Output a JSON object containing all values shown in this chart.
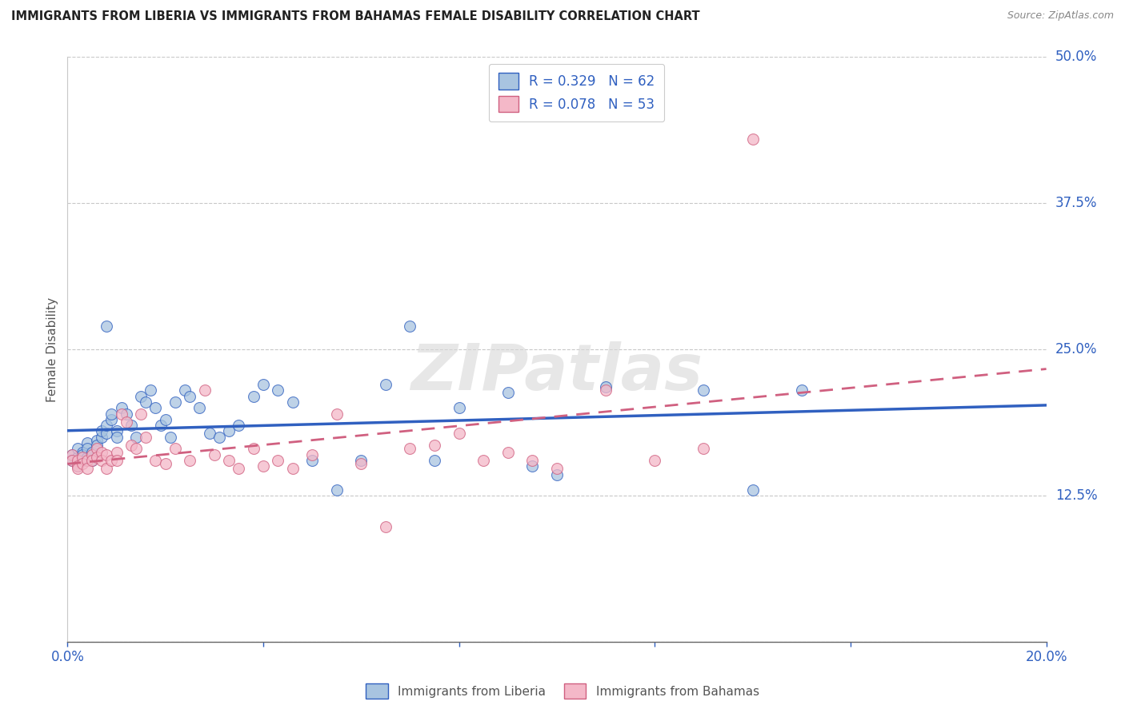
{
  "title": "IMMIGRANTS FROM LIBERIA VS IMMIGRANTS FROM BAHAMAS FEMALE DISABILITY CORRELATION CHART",
  "source": "Source: ZipAtlas.com",
  "ylabel": "Female Disability",
  "xlim": [
    0.0,
    0.2
  ],
  "ylim": [
    0.0,
    0.5
  ],
  "xticks": [
    0.0,
    0.04,
    0.08,
    0.12,
    0.16,
    0.2
  ],
  "yticks": [
    0.0,
    0.125,
    0.25,
    0.375,
    0.5
  ],
  "ytick_labels": [
    "",
    "12.5%",
    "25.0%",
    "37.5%",
    "50.0%"
  ],
  "xtick_labels": [
    "0.0%",
    "",
    "",
    "",
    "",
    "20.0%"
  ],
  "color_liberia": "#a8c4e0",
  "color_bahamas": "#f4b8c8",
  "line_color_liberia": "#3060c0",
  "line_color_bahamas": "#d06080",
  "R_liberia": 0.329,
  "N_liberia": 62,
  "R_bahamas": 0.078,
  "N_bahamas": 53,
  "watermark": "ZIPatlas",
  "liberia_x": [
    0.001,
    0.001,
    0.002,
    0.002,
    0.002,
    0.003,
    0.003,
    0.003,
    0.004,
    0.004,
    0.004,
    0.005,
    0.005,
    0.005,
    0.006,
    0.006,
    0.007,
    0.007,
    0.008,
    0.008,
    0.009,
    0.009,
    0.01,
    0.01,
    0.011,
    0.012,
    0.013,
    0.014,
    0.015,
    0.016,
    0.017,
    0.018,
    0.019,
    0.02,
    0.021,
    0.022,
    0.024,
    0.025,
    0.027,
    0.029,
    0.031,
    0.033,
    0.035,
    0.038,
    0.04,
    0.043,
    0.046,
    0.05,
    0.055,
    0.06,
    0.065,
    0.07,
    0.075,
    0.08,
    0.09,
    0.095,
    0.1,
    0.11,
    0.13,
    0.14,
    0.15,
    0.008
  ],
  "liberia_y": [
    0.16,
    0.155,
    0.158,
    0.165,
    0.15,
    0.162,
    0.155,
    0.16,
    0.158,
    0.17,
    0.165,
    0.16,
    0.155,
    0.162,
    0.172,
    0.168,
    0.175,
    0.18,
    0.178,
    0.185,
    0.19,
    0.195,
    0.18,
    0.175,
    0.2,
    0.195,
    0.185,
    0.175,
    0.21,
    0.205,
    0.215,
    0.2,
    0.185,
    0.19,
    0.175,
    0.205,
    0.215,
    0.21,
    0.2,
    0.178,
    0.175,
    0.18,
    0.185,
    0.21,
    0.22,
    0.215,
    0.205,
    0.155,
    0.13,
    0.155,
    0.22,
    0.27,
    0.155,
    0.2,
    0.213,
    0.15,
    0.143,
    0.218,
    0.215,
    0.13,
    0.215,
    0.27
  ],
  "bahamas_x": [
    0.001,
    0.001,
    0.002,
    0.002,
    0.002,
    0.003,
    0.003,
    0.004,
    0.004,
    0.005,
    0.005,
    0.006,
    0.006,
    0.007,
    0.007,
    0.008,
    0.008,
    0.009,
    0.01,
    0.01,
    0.011,
    0.012,
    0.013,
    0.014,
    0.015,
    0.016,
    0.018,
    0.02,
    0.022,
    0.025,
    0.028,
    0.03,
    0.033,
    0.035,
    0.038,
    0.04,
    0.043,
    0.046,
    0.05,
    0.055,
    0.06,
    0.065,
    0.07,
    0.075,
    0.08,
    0.085,
    0.09,
    0.095,
    0.1,
    0.11,
    0.12,
    0.13,
    0.14
  ],
  "bahamas_y": [
    0.16,
    0.155,
    0.155,
    0.15,
    0.148,
    0.158,
    0.152,
    0.155,
    0.148,
    0.16,
    0.155,
    0.165,
    0.158,
    0.162,
    0.155,
    0.16,
    0.148,
    0.155,
    0.162,
    0.155,
    0.195,
    0.188,
    0.168,
    0.165,
    0.195,
    0.175,
    0.155,
    0.152,
    0.165,
    0.155,
    0.215,
    0.16,
    0.155,
    0.148,
    0.165,
    0.15,
    0.155,
    0.148,
    0.16,
    0.195,
    0.152,
    0.098,
    0.165,
    0.168,
    0.178,
    0.155,
    0.162,
    0.155,
    0.148,
    0.215,
    0.155,
    0.165,
    0.43
  ]
}
